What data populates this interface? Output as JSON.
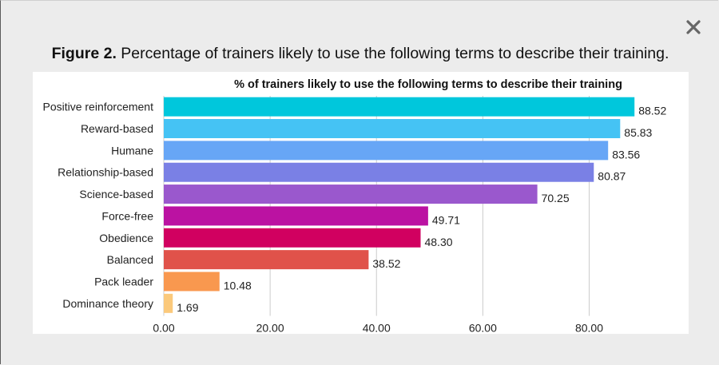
{
  "caption": {
    "label": "Figure 2.",
    "text": "Percentage of trainers likely to use the following terms to describe their training."
  },
  "close_icon": "close-icon",
  "chart_data": {
    "type": "bar",
    "orientation": "horizontal",
    "title": "% of trainers likely to use the following terms to describe their training",
    "xlabel": "",
    "ylabel": "",
    "categories": [
      "Positive reinforcement",
      "Reward-based",
      "Humane",
      "Relationship-based",
      "Science-based",
      "Force-free",
      "Obedience",
      "Balanced",
      "Pack leader",
      "Dominance theory"
    ],
    "values": [
      88.52,
      85.83,
      83.56,
      80.87,
      70.25,
      49.71,
      48.3,
      38.52,
      10.48,
      1.69
    ],
    "value_labels": [
      "88.52",
      "85.83",
      "83.56",
      "80.87",
      "70.25",
      "49.71",
      "48.30",
      "38.52",
      "10.48",
      "1.69"
    ],
    "colors": [
      "#00c7dc",
      "#45c3f4",
      "#67a6f6",
      "#7a80e5",
      "#9a58cd",
      "#bb12a2",
      "#d10060",
      "#e0524a",
      "#f9984f",
      "#fbc97b"
    ],
    "xlim": [
      0,
      96
    ],
    "xticks": [
      0,
      20,
      40,
      60,
      80
    ],
    "xtick_labels": [
      "0.00",
      "20.00",
      "40.00",
      "60.00",
      "80.00"
    ],
    "grid": true,
    "legend": "none"
  }
}
